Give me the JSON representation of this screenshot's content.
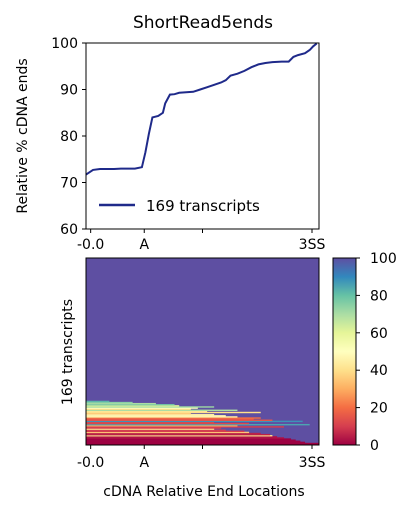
{
  "chart_data": [
    {
      "type": "line",
      "title": "ShortRead5ends",
      "ylabel": "Relative % cDNA ends",
      "ylim": [
        60,
        100
      ],
      "yticks": [
        60,
        70,
        80,
        90,
        100
      ],
      "xlim": [
        0,
        100
      ],
      "xticks": [
        {
          "x": 2,
          "label": "-0.0"
        },
        {
          "x": 25,
          "label": "A"
        },
        {
          "x": 50,
          "label": ""
        },
        {
          "x": 97,
          "label": "3SS"
        }
      ],
      "legend": {
        "placement": "lower-left"
      },
      "series": [
        {
          "name": "169 transcripts",
          "color": "#1f2a8a",
          "points": [
            [
              0,
              71.7
            ],
            [
              3,
              72.7
            ],
            [
              6,
              72.9
            ],
            [
              9,
              72.9
            ],
            [
              12,
              72.9
            ],
            [
              15,
              73.0
            ],
            [
              18,
              73.0
            ],
            [
              21,
              73.0
            ],
            [
              24,
              73.3
            ],
            [
              25.5,
              76.5
            ],
            [
              27,
              80.5
            ],
            [
              28.5,
              84.0
            ],
            [
              31,
              84.3
            ],
            [
              33,
              85.0
            ],
            [
              34,
              87.0
            ],
            [
              36,
              88.9
            ],
            [
              38,
              89.0
            ],
            [
              40,
              89.3
            ],
            [
              43,
              89.4
            ],
            [
              46,
              89.5
            ],
            [
              49,
              90.0
            ],
            [
              52,
              90.5
            ],
            [
              55,
              91.0
            ],
            [
              58,
              91.5
            ],
            [
              60,
              92.0
            ],
            [
              62,
              93.0
            ],
            [
              65,
              93.4
            ],
            [
              68,
              94.0
            ],
            [
              71,
              94.8
            ],
            [
              74,
              95.4
            ],
            [
              77,
              95.7
            ],
            [
              80,
              95.9
            ],
            [
              84,
              96.0
            ],
            [
              87,
              96.0
            ],
            [
              89,
              97.0
            ],
            [
              91,
              97.4
            ],
            [
              94,
              97.8
            ],
            [
              96,
              98.5
            ],
            [
              97.5,
              99.3
            ],
            [
              99,
              99.9
            ]
          ]
        }
      ]
    },
    {
      "type": "heatmap",
      "ylabel": "169 transcripts",
      "xlabel": "cDNA Relative End Locations",
      "xticks": [
        {
          "x": 2,
          "label": "-0.0"
        },
        {
          "x": 25,
          "label": "A"
        },
        {
          "x": 50,
          "label": ""
        },
        {
          "x": 97,
          "label": "3SS"
        }
      ],
      "n_rows": 169,
      "colorbar": {
        "min": 0,
        "max": 100,
        "ticks": [
          0,
          20,
          40,
          60,
          80,
          100
        ],
        "colormap": "Spectral"
      },
      "background_value": 100,
      "rows": [
        {
          "row": 0,
          "value": 0,
          "x_start": 0,
          "x_end": 100
        },
        {
          "row": 1,
          "value": 0,
          "x_start": 0,
          "x_end": 100
        },
        {
          "row": 2,
          "value": 0,
          "x_start": 0,
          "x_end": 94
        },
        {
          "row": 3,
          "value": 0,
          "x_start": 0,
          "x_end": 92
        },
        {
          "row": 4,
          "value": 0,
          "x_start": 0,
          "x_end": 90
        },
        {
          "row": 5,
          "value": 0,
          "x_start": 0,
          "x_end": 88
        },
        {
          "row": 6,
          "value": 3,
          "x_start": 0,
          "x_end": 85
        },
        {
          "row": 7,
          "value": 3,
          "x_start": 0,
          "x_end": 82
        },
        {
          "row": 8,
          "value": 40,
          "x_start": 0,
          "x_end": 80
        },
        {
          "row": 9,
          "value": 5,
          "x_start": 0,
          "x_end": 79
        },
        {
          "row": 10,
          "value": 5,
          "x_start": 0,
          "x_end": 75
        },
        {
          "row": 11,
          "value": 35,
          "x_start": 0,
          "x_end": 70
        },
        {
          "row": 12,
          "value": 10,
          "x_start": 0,
          "x_end": 68
        },
        {
          "row": 13,
          "value": 10,
          "x_start": 0,
          "x_end": 60
        },
        {
          "row": 14,
          "value": 42,
          "x_start": 0,
          "x_end": 55
        },
        {
          "row": 15,
          "value": 10,
          "x_start": 0,
          "x_end": 58
        },
        {
          "row": 16,
          "value": 10,
          "x_start": 0,
          "x_end": 85
        },
        {
          "row": 17,
          "value": 30,
          "x_start": 0,
          "x_end": 65
        },
        {
          "row": 18,
          "value": 85,
          "x_start": 0,
          "x_end": 96
        },
        {
          "row": 19,
          "value": 12,
          "x_start": 0,
          "x_end": 70
        },
        {
          "row": 20,
          "value": 12,
          "x_start": 0,
          "x_end": 55
        },
        {
          "row": 21,
          "value": 88,
          "x_start": 0,
          "x_end": 93
        },
        {
          "row": 22,
          "value": 15,
          "x_start": 0,
          "x_end": 80
        },
        {
          "row": 23,
          "value": 15,
          "x_start": 0,
          "x_end": 72
        },
        {
          "row": 24,
          "value": 20,
          "x_start": 0,
          "x_end": 75
        },
        {
          "row": 25,
          "value": 45,
          "x_start": 0,
          "x_end": 65
        },
        {
          "row": 26,
          "value": 48,
          "x_start": 0,
          "x_end": 60
        },
        {
          "row": 27,
          "value": 45,
          "x_start": 0,
          "x_end": 55
        },
        {
          "row": 28,
          "value": 35,
          "x_start": 0,
          "x_end": 45
        },
        {
          "row": 29,
          "value": 40,
          "x_start": 0,
          "x_end": 75
        },
        {
          "row": 30,
          "value": 42,
          "x_start": 0,
          "x_end": 52
        },
        {
          "row": 31,
          "value": 70,
          "x_start": 0,
          "x_end": 65
        },
        {
          "row": 32,
          "value": 40,
          "x_start": 0,
          "x_end": 45
        },
        {
          "row": 33,
          "value": 50,
          "x_start": 0,
          "x_end": 48
        },
        {
          "row": 34,
          "value": 72,
          "x_start": 0,
          "x_end": 55
        },
        {
          "row": 35,
          "value": 60,
          "x_start": 0,
          "x_end": 40
        },
        {
          "row": 36,
          "value": 78,
          "x_start": 0,
          "x_end": 38
        },
        {
          "row": 37,
          "value": 70,
          "x_start": 0,
          "x_end": 30
        },
        {
          "row": 38,
          "value": 75,
          "x_start": 0,
          "x_end": 20
        },
        {
          "row": 39,
          "value": 82,
          "x_start": 0,
          "x_end": 10
        }
      ]
    }
  ]
}
